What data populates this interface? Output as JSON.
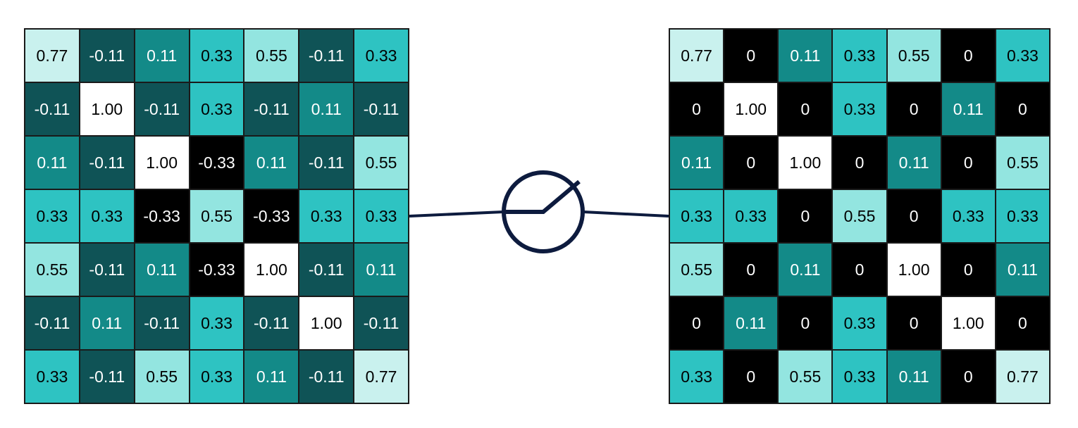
{
  "palette": {
    "black": "#000000",
    "darkest_teal": "#0f5356",
    "dark_teal": "#138a88",
    "teal": "#2ec3c2",
    "light_teal": "#93e5e0",
    "pale_teal": "#c9f1ee",
    "white": "#ffffff",
    "line": "#0d1b3e"
  },
  "input_matrix": [
    [
      "0.77",
      "-0.11",
      "0.11",
      "0.33",
      "0.55",
      "-0.11",
      "0.33"
    ],
    [
      "-0.11",
      "1.00",
      "-0.11",
      "0.33",
      "-0.11",
      "0.11",
      "-0.11"
    ],
    [
      "0.11",
      "-0.11",
      "1.00",
      "-0.33",
      "0.11",
      "-0.11",
      "0.55"
    ],
    [
      "0.33",
      "0.33",
      "-0.33",
      "0.55",
      "-0.33",
      "0.33",
      "0.33"
    ],
    [
      "0.55",
      "-0.11",
      "0.11",
      "-0.33",
      "1.00",
      "-0.11",
      "0.11"
    ],
    [
      "-0.11",
      "0.11",
      "-0.11",
      "0.33",
      "-0.11",
      "1.00",
      "-0.11"
    ],
    [
      "0.33",
      "-0.11",
      "0.55",
      "0.33",
      "0.11",
      "-0.11",
      "0.77"
    ]
  ],
  "output_matrix": [
    [
      "0.77",
      "0",
      "0.11",
      "0.33",
      "0.55",
      "0",
      "0.33"
    ],
    [
      "0",
      "1.00",
      "0",
      "0.33",
      "0",
      "0.11",
      "0"
    ],
    [
      "0.11",
      "0",
      "1.00",
      "0",
      "0.11",
      "0",
      "0.55"
    ],
    [
      "0.33",
      "0.33",
      "0",
      "0.55",
      "0",
      "0.33",
      "0.33"
    ],
    [
      "0.55",
      "0",
      "0.11",
      "0",
      "1.00",
      "0",
      "0.11"
    ],
    [
      "0",
      "0.11",
      "0",
      "0.33",
      "0",
      "1.00",
      "0"
    ],
    [
      "0.33",
      "0",
      "0.55",
      "0.33",
      "0.11",
      "0",
      "0.77"
    ]
  ],
  "operator_icon": "relu-function-icon"
}
